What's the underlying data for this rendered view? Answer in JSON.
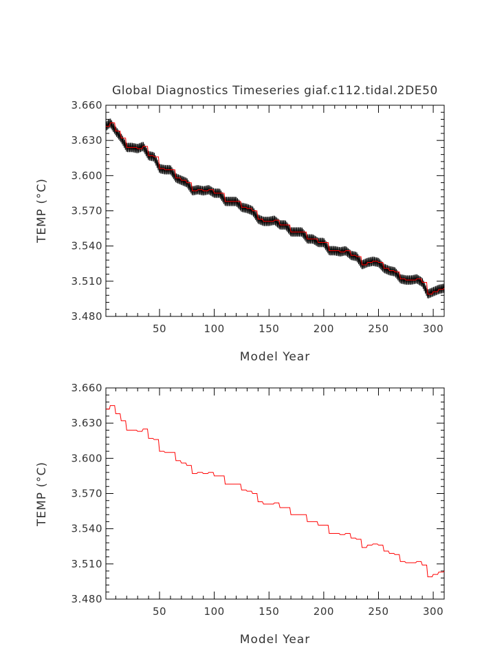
{
  "chart_data": [
    {
      "type": "line",
      "title": "Global Diagnostics Timeseries giaf.c112.tidal.2DE50",
      "xlabel": "Model Year",
      "ylabel": "TEMP (°C)",
      "xlim": [
        1,
        310
      ],
      "ylim": [
        3.48,
        3.66
      ],
      "x_ticks": [
        50,
        100,
        150,
        200,
        250,
        300
      ],
      "y_ticks": [
        3.48,
        3.51,
        3.54,
        3.57,
        3.6,
        3.63,
        3.66
      ],
      "y_tick_labels": [
        "3.480",
        "3.510",
        "3.540",
        "3.570",
        "3.600",
        "3.630",
        "3.660"
      ],
      "x_tick_labels": [
        "50",
        "100",
        "150",
        "200",
        "250",
        "300"
      ],
      "series": [
        {
          "kind": "monthly",
          "color": "#000000",
          "seasonal_amplitude": 0.004,
          "x": [
            1,
            5,
            10,
            15,
            20,
            25,
            30,
            35,
            40,
            45,
            50,
            55,
            60,
            65,
            70,
            75,
            80,
            85,
            90,
            95,
            100,
            105,
            110,
            115,
            120,
            125,
            130,
            135,
            140,
            145,
            150,
            155,
            160,
            165,
            170,
            175,
            180,
            185,
            190,
            195,
            200,
            205,
            210,
            215,
            220,
            225,
            230,
            235,
            240,
            245,
            250,
            255,
            260,
            265,
            270,
            275,
            280,
            285,
            290,
            295,
            300,
            305,
            310
          ],
          "y": [
            3.642,
            3.645,
            3.638,
            3.632,
            3.624,
            3.624,
            3.623,
            3.625,
            3.617,
            3.616,
            3.606,
            3.605,
            3.605,
            3.598,
            3.596,
            3.594,
            3.587,
            3.588,
            3.587,
            3.588,
            3.585,
            3.585,
            3.578,
            3.578,
            3.578,
            3.573,
            3.572,
            3.57,
            3.563,
            3.561,
            3.561,
            3.562,
            3.558,
            3.558,
            3.552,
            3.552,
            3.552,
            3.546,
            3.546,
            3.543,
            3.543,
            3.536,
            3.536,
            3.535,
            3.536,
            3.532,
            3.531,
            3.524,
            3.526,
            3.527,
            3.526,
            3.521,
            3.519,
            3.518,
            3.512,
            3.511,
            3.511,
            3.512,
            3.509,
            3.499,
            3.501,
            3.503,
            3.504
          ]
        },
        {
          "kind": "annual",
          "color": "#ff0000",
          "x": [
            1,
            5,
            10,
            15,
            20,
            25,
            30,
            35,
            40,
            45,
            50,
            55,
            60,
            65,
            70,
            75,
            80,
            85,
            90,
            95,
            100,
            105,
            110,
            115,
            120,
            125,
            130,
            135,
            140,
            145,
            150,
            155,
            160,
            165,
            170,
            175,
            180,
            185,
            190,
            195,
            200,
            205,
            210,
            215,
            220,
            225,
            230,
            235,
            240,
            245,
            250,
            255,
            260,
            265,
            270,
            275,
            280,
            285,
            290,
            295,
            300,
            305,
            310
          ],
          "y": [
            3.642,
            3.645,
            3.638,
            3.632,
            3.624,
            3.624,
            3.623,
            3.625,
            3.617,
            3.616,
            3.606,
            3.605,
            3.605,
            3.598,
            3.596,
            3.594,
            3.587,
            3.588,
            3.587,
            3.588,
            3.585,
            3.585,
            3.578,
            3.578,
            3.578,
            3.573,
            3.572,
            3.57,
            3.563,
            3.561,
            3.561,
            3.562,
            3.558,
            3.558,
            3.552,
            3.552,
            3.552,
            3.546,
            3.546,
            3.543,
            3.543,
            3.536,
            3.536,
            3.535,
            3.536,
            3.532,
            3.531,
            3.524,
            3.526,
            3.527,
            3.526,
            3.521,
            3.519,
            3.518,
            3.512,
            3.511,
            3.511,
            3.512,
            3.509,
            3.499,
            3.501,
            3.503,
            3.504
          ]
        }
      ]
    },
    {
      "type": "line",
      "title": "",
      "xlabel": "Model Year",
      "ylabel": "TEMP (°C)",
      "xlim": [
        1,
        310
      ],
      "ylim": [
        3.48,
        3.66
      ],
      "x_ticks": [
        50,
        100,
        150,
        200,
        250,
        300
      ],
      "y_ticks": [
        3.48,
        3.51,
        3.54,
        3.57,
        3.6,
        3.63,
        3.66
      ],
      "y_tick_labels": [
        "3.480",
        "3.510",
        "3.540",
        "3.570",
        "3.600",
        "3.630",
        "3.660"
      ],
      "x_tick_labels": [
        "50",
        "100",
        "150",
        "200",
        "250",
        "300"
      ],
      "series": [
        {
          "kind": "annual",
          "color": "#ff0000",
          "x": [
            1,
            5,
            10,
            15,
            20,
            25,
            30,
            35,
            40,
            45,
            50,
            55,
            60,
            65,
            70,
            75,
            80,
            85,
            90,
            95,
            100,
            105,
            110,
            115,
            120,
            125,
            130,
            135,
            140,
            145,
            150,
            155,
            160,
            165,
            170,
            175,
            180,
            185,
            190,
            195,
            200,
            205,
            210,
            215,
            220,
            225,
            230,
            235,
            240,
            245,
            250,
            255,
            260,
            265,
            270,
            275,
            280,
            285,
            290,
            295,
            300,
            305,
            310
          ],
          "y": [
            3.642,
            3.645,
            3.638,
            3.632,
            3.624,
            3.624,
            3.623,
            3.625,
            3.617,
            3.616,
            3.606,
            3.605,
            3.605,
            3.598,
            3.596,
            3.594,
            3.587,
            3.588,
            3.587,
            3.588,
            3.585,
            3.585,
            3.578,
            3.578,
            3.578,
            3.573,
            3.572,
            3.57,
            3.563,
            3.561,
            3.561,
            3.562,
            3.558,
            3.558,
            3.552,
            3.552,
            3.552,
            3.546,
            3.546,
            3.543,
            3.543,
            3.536,
            3.536,
            3.535,
            3.536,
            3.532,
            3.531,
            3.524,
            3.526,
            3.527,
            3.526,
            3.521,
            3.519,
            3.518,
            3.512,
            3.511,
            3.511,
            3.512,
            3.509,
            3.499,
            3.501,
            3.503,
            3.504
          ]
        }
      ]
    }
  ]
}
